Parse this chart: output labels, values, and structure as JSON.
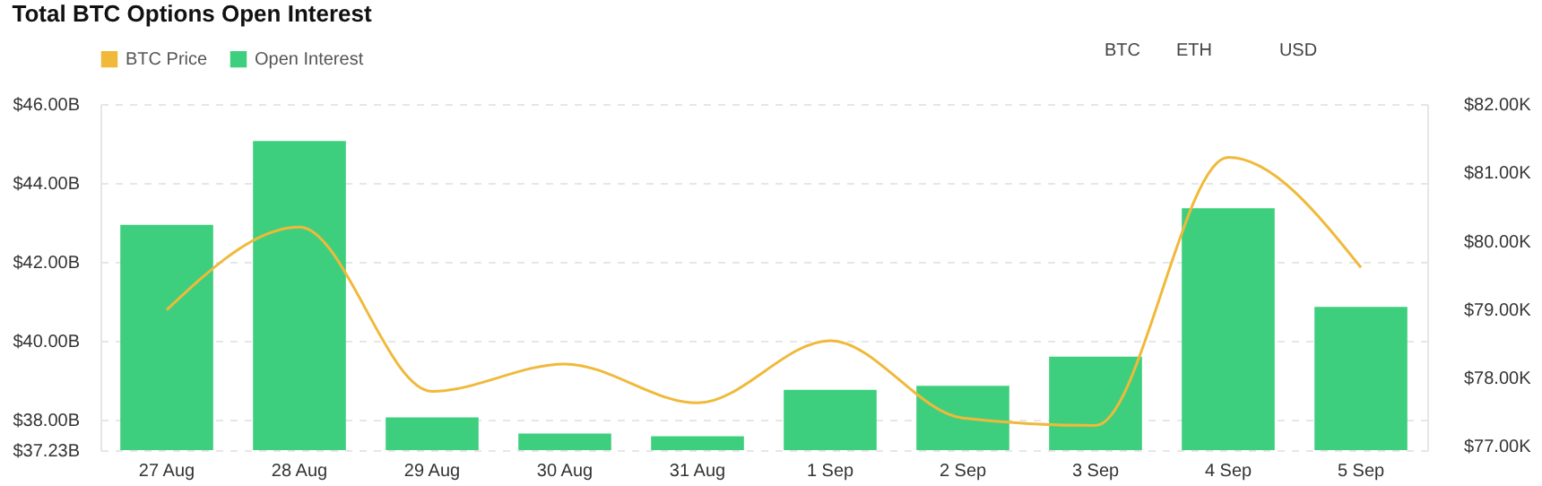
{
  "chart_data": {
    "type": "bar",
    "title": "Total BTC Options Open Interest",
    "annotations": [
      "BTC",
      "ETH",
      "USD"
    ],
    "categories": [
      "27 Aug",
      "28 Aug",
      "29 Aug",
      "30 Aug",
      "31 Aug",
      "1 Sep",
      "2 Sep",
      "3 Sep",
      "4 Sep",
      "5 Sep"
    ],
    "series": [
      {
        "name": "BTC Price",
        "type": "line",
        "axis": "y2",
        "color": "#f0b93a",
        "values": [
          78.99,
          80.2,
          77.8,
          78.2,
          77.63,
          78.54,
          77.41,
          77.3,
          81.22,
          79.61
        ]
      },
      {
        "name": "Open Interest",
        "color": "#3ecf7e",
        "values": [
          42.94,
          45.06,
          38.06,
          37.65,
          37.58,
          38.76,
          38.86,
          39.6,
          43.36,
          40.86
        ]
      }
    ],
    "ylim": [
      37.23,
      46
    ],
    "yticks": [
      {
        "value": 37.23,
        "label": "$37.23B"
      },
      {
        "value": 38,
        "label": "$38.00B"
      },
      {
        "value": 40,
        "label": "$40.00B"
      },
      {
        "value": 42,
        "label": "$42.00B"
      },
      {
        "value": 44,
        "label": "$44.00B"
      },
      {
        "value": 46,
        "label": "$46.00B"
      }
    ],
    "y2lim": [
      76.94,
      82
    ],
    "y2ticks": [
      {
        "value": 77,
        "label": "$77.00K"
      },
      {
        "value": 78,
        "label": "$78.00K"
      },
      {
        "value": 79,
        "label": "$79.00K"
      },
      {
        "value": 80,
        "label": "$80.00K"
      },
      {
        "value": 81,
        "label": "$81.00K"
      },
      {
        "value": 82,
        "label": "$82.00K"
      }
    ],
    "grid": "y",
    "legend": "top",
    "line_style": "solid",
    "marker": "none"
  }
}
